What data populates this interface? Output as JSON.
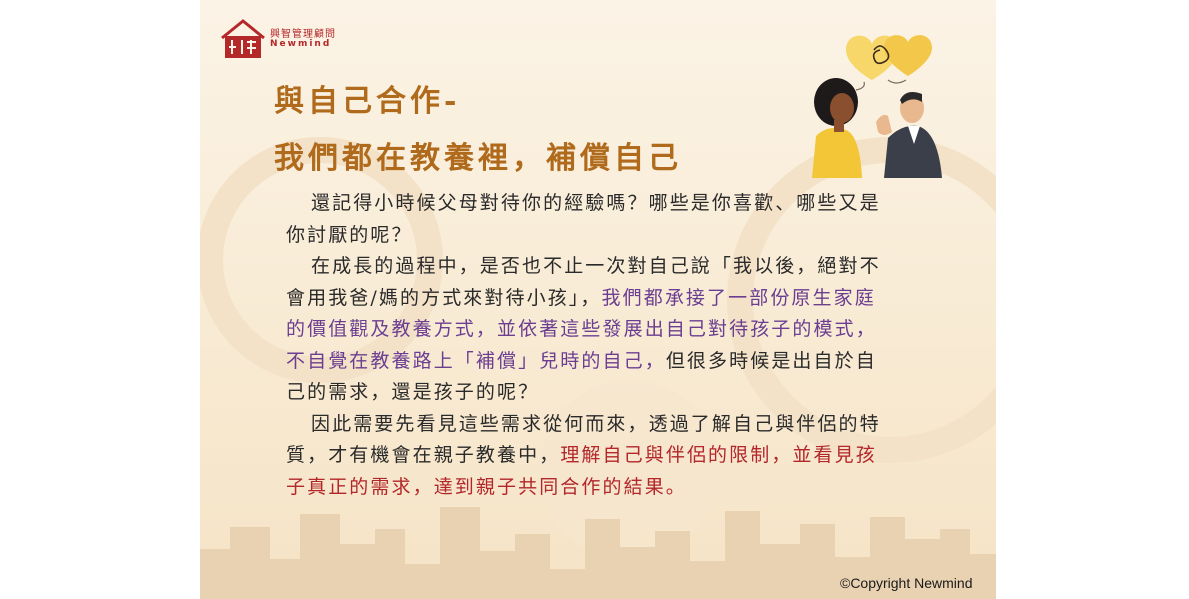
{
  "brand": {
    "name_cn": "興智管理顧問",
    "name_en": "Newmind",
    "color": "#b5282a"
  },
  "title": {
    "line1": "與自己合作-",
    "line2": "我們都在教養裡，補償自己",
    "color": "#b06a1c"
  },
  "body": {
    "p1": "還記得小時候父母對待你的經驗嗎？哪些是你喜歡、哪些又是你討厭的呢？",
    "p2_plain": "在成長的過程中，是否也不止一次對自己說「我以後，絕對不會用我爸/媽的方式來對待小孩」，",
    "p2_highlight": "我們都承接了一部份原生家庭的價值觀及教養方式，並依著這些發展出自己對待孩子的模式，不自覺在教養路上「補償」兒時的自己，",
    "p2_end": "但很多時候是出自於自己的需求，還是孩子的呢？",
    "p3_plain": "因此需要先看見這些需求從何而來，透過了解自己與伴侶的特質，才有機會在親子教養中，",
    "p3_highlight": "理解自己與伴侶的限制，並看見孩子真正的需求，達到親子共同合作的結果。",
    "highlight_purple": "#6b3e91",
    "highlight_red": "#b3262a"
  },
  "footer": {
    "copyright": "©Copyright Newmind"
  },
  "illustration": {
    "icon": "two-people-conversation-with-tangled-thought-hearts"
  }
}
